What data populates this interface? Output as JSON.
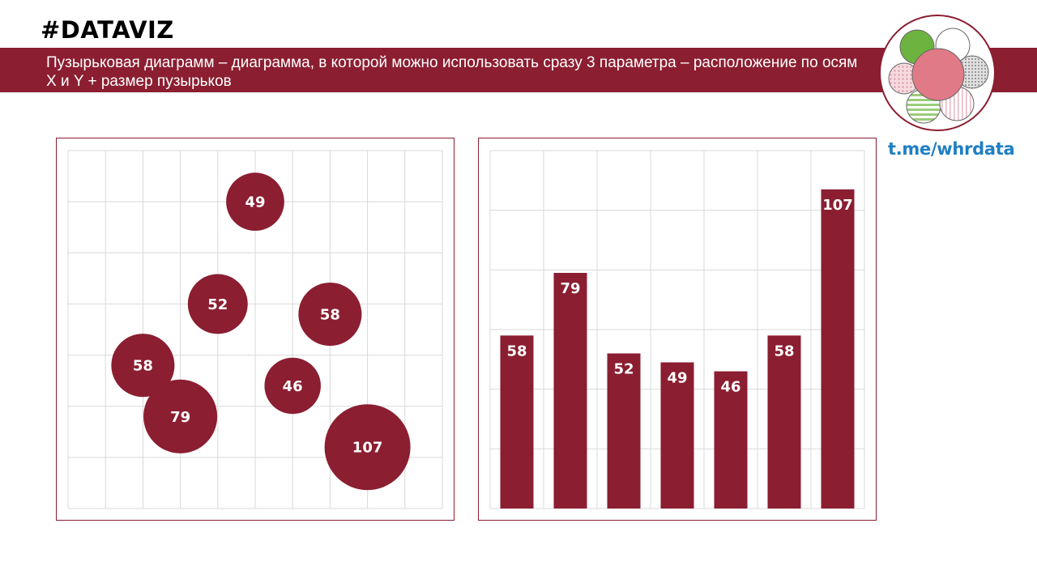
{
  "header": {
    "hashtag": "#DATAVIZ",
    "description": "Пузырьковая диаграмм – диаграмма, в которой можно использовать сразу 3 параметра – расположение по осям X и Y + размер пузырьков",
    "link": "t.me/whrdata"
  },
  "colors": {
    "accent": "#8B1E31",
    "link": "#1F7FC4",
    "grid": "#D9D9D9"
  },
  "logo": {
    "icon": "bubble-cluster-logo-icon"
  },
  "chart_data": [
    {
      "type": "scatter",
      "subtype": "bubble",
      "grid": true,
      "xlim": [
        0,
        10
      ],
      "ylim": [
        0,
        7
      ],
      "points": [
        {
          "x": 5.0,
          "y": 6.0,
          "size": 49,
          "label": "49"
        },
        {
          "x": 4.0,
          "y": 4.0,
          "size": 52,
          "label": "52"
        },
        {
          "x": 7.0,
          "y": 3.8,
          "size": 58,
          "label": "58"
        },
        {
          "x": 2.0,
          "y": 2.8,
          "size": 58,
          "label": "58"
        },
        {
          "x": 6.0,
          "y": 2.4,
          "size": 46,
          "label": "46"
        },
        {
          "x": 3.0,
          "y": 1.8,
          "size": 79,
          "label": "79"
        },
        {
          "x": 8.0,
          "y": 1.2,
          "size": 107,
          "label": "107"
        }
      ]
    },
    {
      "type": "bar",
      "grid": true,
      "ylim": [
        0,
        120
      ],
      "values": [
        58,
        79,
        52,
        49,
        46,
        58,
        107
      ],
      "data_labels": [
        "58",
        "79",
        "52",
        "49",
        "46",
        "58",
        "107"
      ]
    }
  ]
}
